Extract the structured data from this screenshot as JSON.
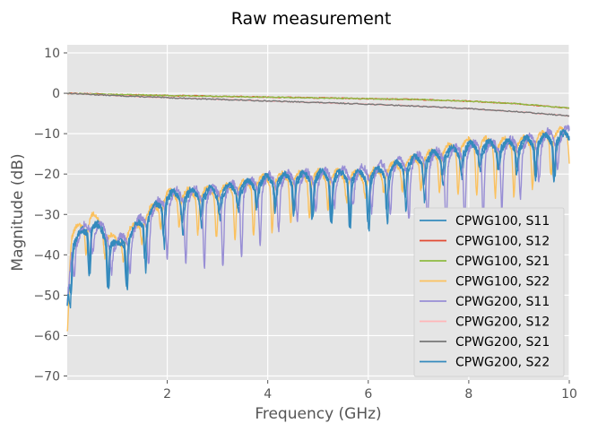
{
  "chart_data": {
    "type": "line",
    "title": "Raw measurement",
    "xlabel": "Frequency (GHz)",
    "ylabel": "Magnitude (dB)",
    "xlim": [
      0.01,
      10
    ],
    "ylim": [
      -71,
      12
    ],
    "xticks": [
      2,
      4,
      6,
      8,
      10
    ],
    "xtick_labels": [
      "2",
      "4",
      "6",
      "8",
      "10"
    ],
    "yticks": [
      10,
      0,
      -10,
      -20,
      -30,
      -40,
      -50,
      -60,
      -70
    ],
    "ytick_labels": [
      "10",
      "0",
      "−10",
      "−20",
      "−30",
      "−40",
      "−50",
      "−60",
      "−70"
    ],
    "grid": true,
    "legend_position": "lower-right",
    "series": [
      {
        "name": "CPWG100, S11",
        "color": "#348ABD",
        "kind": "reflection",
        "phase": 0.25,
        "amp": 5.5,
        "offset": 0.0,
        "noise": 0.8,
        "seed": 11,
        "x": [
          0.01,
          0.1,
          0.5,
          1.0,
          2.0,
          3.0,
          4.0,
          5.0,
          6.0,
          7.0,
          8.0,
          9.0,
          10.0
        ],
        "y": [
          -52,
          -38,
          -32,
          -38,
          -26,
          -25,
          -22,
          -21,
          -21,
          -17,
          -14,
          -13,
          -11
        ]
      },
      {
        "name": "CPWG100, S12",
        "color": "#E24A33",
        "kind": "transmission",
        "x": [
          0.01,
          1,
          2,
          3,
          4,
          5,
          6,
          7,
          8,
          9,
          10
        ],
        "y": [
          0.0,
          -0.3,
          -0.55,
          -0.75,
          -0.95,
          -1.15,
          -1.35,
          -1.55,
          -1.95,
          -2.6,
          -3.7
        ]
      },
      {
        "name": "CPWG100, S21",
        "color": "#8EBA42",
        "kind": "transmission",
        "x": [
          0.01,
          1,
          2,
          3,
          4,
          5,
          6,
          7,
          8,
          9,
          10
        ],
        "y": [
          0.0,
          -0.3,
          -0.55,
          -0.75,
          -0.95,
          -1.15,
          -1.35,
          -1.55,
          -1.95,
          -2.6,
          -3.7
        ]
      },
      {
        "name": "CPWG100, S22",
        "color": "#FBC15E",
        "kind": "reflection",
        "phase": 0.45,
        "amp": 5.5,
        "offset": 0.5,
        "noise": 0.6,
        "seed": 22,
        "x": [
          0.01,
          0.1,
          0.5,
          1.0,
          2.0,
          3.0,
          4.0,
          5.0,
          6.0,
          7.0,
          8.0,
          9.0,
          10.0
        ],
        "y": [
          -50,
          -36,
          -31,
          -38,
          -26,
          -25,
          -22,
          -21,
          -21,
          -17,
          -13,
          -13,
          -10
        ]
      },
      {
        "name": "CPWG200, S11",
        "color": "#988ED5",
        "kind": "reflection",
        "phase": 0.1,
        "amp": 7.5,
        "offset": 2.0,
        "noise": 0.9,
        "seed": 33,
        "x": [
          0.01,
          0.1,
          0.5,
          1.0,
          2.0,
          3.0,
          4.0,
          5.0,
          6.0,
          7.0,
          8.0,
          9.0,
          10.0
        ],
        "y": [
          -55,
          -40,
          -34,
          -40,
          -28,
          -27,
          -24,
          -23,
          -22,
          -19,
          -16,
          -15,
          -12
        ]
      },
      {
        "name": "CPWG200, S12",
        "color": "#FFB5B8",
        "kind": "transmission",
        "x": [
          0.01,
          1,
          2,
          3,
          4,
          5,
          6,
          7,
          8,
          9,
          10
        ],
        "y": [
          0.0,
          -0.6,
          -1.1,
          -1.5,
          -1.9,
          -2.3,
          -2.7,
          -3.2,
          -3.8,
          -4.6,
          -5.6
        ]
      },
      {
        "name": "CPWG200, S21",
        "color": "#777777",
        "kind": "transmission",
        "x": [
          0.01,
          1,
          2,
          3,
          4,
          5,
          6,
          7,
          8,
          9,
          10
        ],
        "y": [
          0.0,
          -0.6,
          -1.1,
          -1.5,
          -1.9,
          -2.3,
          -2.7,
          -3.2,
          -3.8,
          -4.6,
          -5.6
        ]
      },
      {
        "name": "CPWG200, S22",
        "color": "#348ABD",
        "kind": "reflection",
        "phase": 0.3,
        "amp": 5.0,
        "offset": -0.5,
        "noise": 0.7,
        "seed": 44,
        "x": [
          0.01,
          0.1,
          0.5,
          1.0,
          2.0,
          3.0,
          4.0,
          5.0,
          6.0,
          7.0,
          8.0,
          9.0,
          10.0
        ],
        "y": [
          -51,
          -37,
          -32,
          -38,
          -25,
          -24,
          -21,
          -20,
          -20,
          -16,
          -13,
          -12,
          -10
        ]
      }
    ]
  }
}
